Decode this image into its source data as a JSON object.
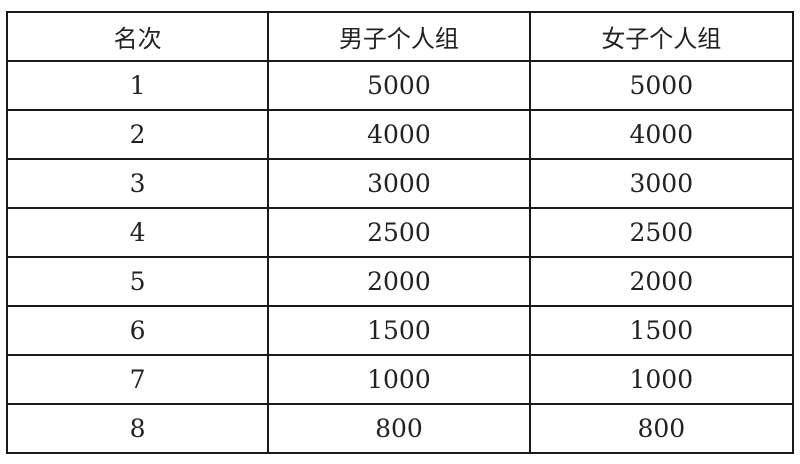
{
  "table": {
    "headers": [
      "名次",
      "男子个人组",
      "女子个人组"
    ],
    "rows": [
      [
        "1",
        "5000",
        "5000"
      ],
      [
        "2",
        "4000",
        "4000"
      ],
      [
        "3",
        "3000",
        "3000"
      ],
      [
        "4",
        "2500",
        "2500"
      ],
      [
        "5",
        "2000",
        "2000"
      ],
      [
        "6",
        "1500",
        "1500"
      ],
      [
        "7",
        "1000",
        "1000"
      ],
      [
        "8",
        "800",
        "800"
      ]
    ]
  }
}
